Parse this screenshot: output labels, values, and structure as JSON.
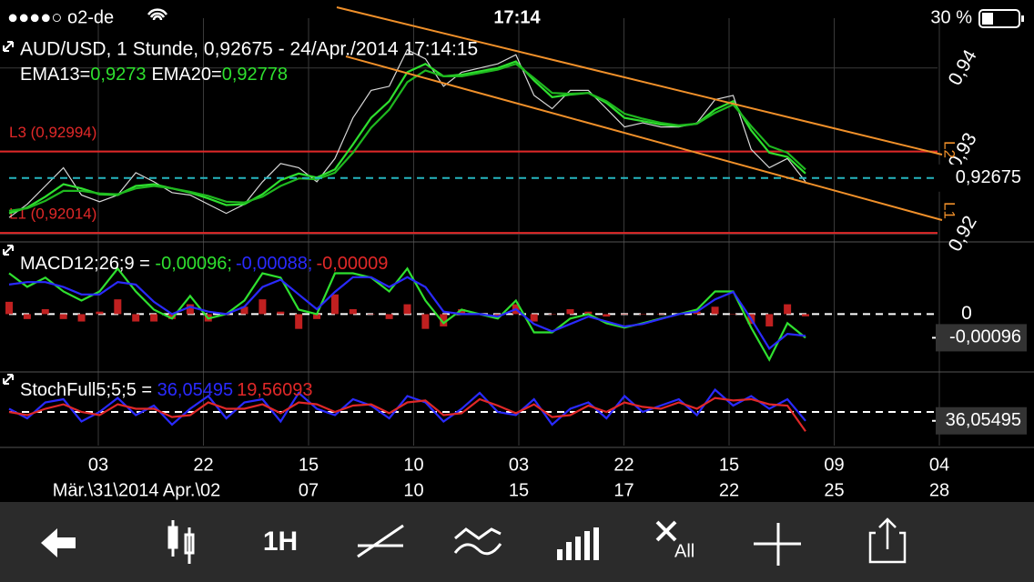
{
  "status_bar": {
    "carrier": "●●●●○ o2-de",
    "time": "17:14",
    "battery": "30 %"
  },
  "price_chart": {
    "type": "line",
    "title": "AUD/USD, 1 Stunde, 0,92675 - 24/Apr./2014 17:14:15",
    "indicators": [
      {
        "text": "EMA13=",
        "value": "0,9273"
      },
      {
        "text": "EMA20=",
        "value": "0,92778"
      }
    ],
    "ylim": [
      0.9195,
      0.946
    ],
    "yticks": [
      {
        "value": 0.94,
        "label": "0,94"
      },
      {
        "value": 0.93,
        "label": "0,93"
      },
      {
        "value": 0.92,
        "label": "0,92"
      }
    ],
    "levels": [
      {
        "value": 0.92994,
        "label": "L3 (0,92994)",
        "color": "#e02828"
      },
      {
        "value": 0.92014,
        "label": "L1 (0,92014)",
        "color": "#e02828"
      }
    ],
    "current": {
      "value": 0.92675,
      "label": "0,92675",
      "color": "#25b5c0"
    },
    "channel_labels": [
      "L2",
      "L1"
    ],
    "series": [
      {
        "color": "#d8d8d8",
        "values": [
          0.922,
          0.9236,
          0.9258,
          0.928,
          0.9247,
          0.9239,
          0.9247,
          0.9274,
          0.9263,
          0.925,
          0.9247,
          0.9236,
          0.9225,
          0.9236,
          0.9263,
          0.9285,
          0.928,
          0.9263,
          0.9291,
          0.934,
          0.9373,
          0.9378,
          0.9422,
          0.9411,
          0.9378,
          0.9395,
          0.94,
          0.9405,
          0.9416,
          0.9367,
          0.9351,
          0.9373,
          0.9373,
          0.9351,
          0.9329,
          0.9334,
          0.9329,
          0.9329,
          0.9334,
          0.9362,
          0.9367,
          0.9302,
          0.928,
          0.9291,
          0.9263
        ]
      },
      {
        "color": "#2fe02f",
        "values": [
          0.9225,
          0.9232,
          0.9245,
          0.926,
          0.9255,
          0.9248,
          0.9247,
          0.9258,
          0.926,
          0.9255,
          0.925,
          0.9243,
          0.9235,
          0.9236,
          0.9248,
          0.9265,
          0.9273,
          0.9268,
          0.9278,
          0.9308,
          0.934,
          0.936,
          0.9395,
          0.9405,
          0.939,
          0.9392,
          0.9396,
          0.94,
          0.9408,
          0.9385,
          0.9365,
          0.9368,
          0.937,
          0.9358,
          0.934,
          0.9336,
          0.9332,
          0.933,
          0.9333,
          0.935,
          0.936,
          0.9325,
          0.9298,
          0.9293,
          0.9273
        ]
      },
      {
        "color": "#1fb81f",
        "values": [
          0.9228,
          0.9231,
          0.924,
          0.9252,
          0.9252,
          0.9249,
          0.9248,
          0.9255,
          0.9258,
          0.9255,
          0.9251,
          0.9246,
          0.9239,
          0.9238,
          0.9245,
          0.9258,
          0.9267,
          0.9266,
          0.9274,
          0.9298,
          0.9328,
          0.935,
          0.9383,
          0.9397,
          0.939,
          0.939,
          0.9394,
          0.9398,
          0.9405,
          0.9388,
          0.937,
          0.9369,
          0.937,
          0.936,
          0.9345,
          0.9339,
          0.9334,
          0.9331,
          0.9333,
          0.9346,
          0.9356,
          0.933,
          0.9306,
          0.9298,
          0.92778
        ]
      }
    ]
  },
  "macd_chart": {
    "type": "line",
    "label": "MACD12;26;9 = ",
    "readouts": [
      {
        "text": "-0,00096;",
        "color": "#2fe02f"
      },
      {
        "text": "-0,00088;",
        "color": "#2a2aff"
      },
      {
        "text": "-0,00009",
        "color": "#e02828"
      }
    ],
    "ylim": [
      -0.0022,
      0.0026
    ],
    "yticks": [
      0
    ],
    "current": {
      "value": -0.00096,
      "label": "-0,00096"
    },
    "series": [
      {
        "color": "#2fe02f",
        "values": [
          0.00166,
          0.00111,
          0.00148,
          0.00092,
          0.00055,
          0.00092,
          0.00185,
          0.00092,
          0.00018,
          -0.00018,
          0.00074,
          -0.00018,
          0,
          0.00055,
          0.00166,
          0.00148,
          0.00018,
          0,
          0.00166,
          0.00166,
          0.00148,
          0.00092,
          0.00185,
          0.00055,
          -0.00037,
          0.00018,
          0,
          -0.00018,
          0.00055,
          -0.00074,
          -0.00074,
          -0.00018,
          0,
          -0.00037,
          -0.00055,
          -0.00037,
          -0.00018,
          0,
          0.00018,
          0.00092,
          0.00092,
          -0.00055,
          -0.00185,
          -0.00037,
          -0.00096
        ]
      },
      {
        "color": "#2a2aff",
        "values": [
          0.0012,
          0.0013,
          0.0013,
          0.0011,
          0.0008,
          0.0008,
          0.0013,
          0.0012,
          0.0005,
          0,
          0.0003,
          0.0001,
          0,
          0.0003,
          0.0011,
          0.0014,
          0.0008,
          0.0002,
          0.0009,
          0.0015,
          0.0015,
          0.0011,
          0.0015,
          0.0011,
          0.0001,
          0,
          0,
          -0.0001,
          0.0002,
          -0.0004,
          -0.0007,
          -0.0004,
          -0.0001,
          -0.0003,
          -0.0005,
          -0.0004,
          -0.0002,
          0,
          0.0001,
          0.0006,
          0.0009,
          -0.0002,
          -0.0014,
          -0.0008,
          -0.00088
        ]
      }
    ],
    "histogram": {
      "color": "#c02020",
      "values": [
        0.0005,
        -0.0002,
        0.0002,
        -0.0002,
        -0.0003,
        0.0001,
        0.0006,
        -0.0003,
        -0.0003,
        -0.0002,
        0.0004,
        -0.0003,
        0,
        0.0003,
        0.0006,
        0.0001,
        -0.0006,
        -0.0002,
        0.0008,
        0.0002,
        0,
        -0.0002,
        0.0004,
        -0.0006,
        -0.0005,
        0.0002,
        0,
        -0.0001,
        0.0004,
        -0.0003,
        0,
        0.0002,
        0.0001,
        -0.0001,
        0,
        0,
        0,
        0,
        0.0001,
        0.0003,
        0,
        -0.0004,
        -0.0005,
        0.0004,
        -9e-05
      ]
    }
  },
  "stoch_chart": {
    "type": "line",
    "label": "StochFull5;5;5 = ",
    "readouts": [
      {
        "text": "36,05495",
        "color": "#2a2aff"
      },
      {
        "text": "19,56093",
        "color": "#e02828"
      }
    ],
    "ylim": [
      0,
      100
    ],
    "ref_line": 50,
    "current": {
      "value": 36.05495,
      "label": "36,05495"
    },
    "series": [
      {
        "color": "#2a2aff",
        "values": [
          55,
          40,
          65,
          70,
          35,
          50,
          72,
          45,
          60,
          30,
          55,
          75,
          40,
          65,
          70,
          35,
          80,
          55,
          45,
          70,
          60,
          40,
          75,
          65,
          35,
          55,
          80,
          50,
          45,
          70,
          30,
          55,
          65,
          40,
          75,
          50,
          60,
          70,
          45,
          85,
          60,
          75,
          55,
          70,
          36.05495
        ]
      },
      {
        "color": "#e02828",
        "values": [
          50,
          45,
          55,
          62,
          50,
          45,
          62,
          55,
          55,
          42,
          45,
          65,
          55,
          55,
          62,
          48,
          65,
          62,
          50,
          60,
          62,
          48,
          65,
          68,
          45,
          48,
          70,
          60,
          48,
          62,
          42,
          45,
          60,
          50,
          65,
          58,
          55,
          65,
          55,
          72,
          68,
          70,
          62,
          60,
          19.56093
        ]
      }
    ]
  },
  "x_axis": {
    "top_labels": [
      "03",
      "22",
      "15",
      "10",
      "03",
      "22",
      "15",
      "09",
      "04"
    ],
    "bottom_labels": [
      "Mär.\\31\\2014 Apr.\\02",
      "07",
      "10",
      "15",
      "17",
      "22",
      "25",
      "28"
    ]
  },
  "toolbar": {
    "timeframe": "1H",
    "clear_label": "All"
  }
}
